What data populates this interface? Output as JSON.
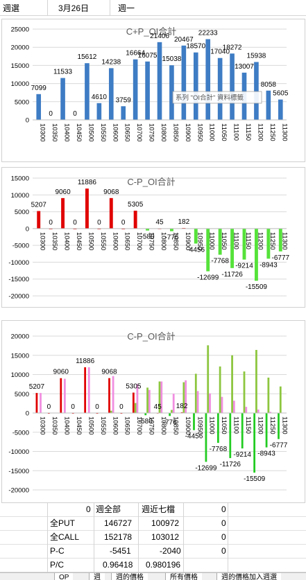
{
  "header": {
    "cells": [
      "週選",
      "3月26日",
      "週一"
    ]
  },
  "chart_data": [
    {
      "type": "bar",
      "title": "C+P_OI合計",
      "categories": [
        "10300",
        "10350",
        "10400",
        "10450",
        "10500",
        "10550",
        "10600",
        "10650",
        "10700",
        "10750",
        "10800",
        "10850",
        "10900",
        "10950",
        "11000",
        "11050",
        "11100",
        "11150",
        "11200",
        "11250",
        "11300"
      ],
      "series": [
        {
          "values": [
            7099,
            0,
            11533,
            0,
            15612,
            4610,
            14238,
            3759,
            16664,
            16075,
            21406,
            15038,
            20467,
            18570,
            22233,
            17040,
            18272,
            13007,
            15938,
            8058,
            5605
          ],
          "color": "#3e7cc4"
        }
      ],
      "ylim": [
        0,
        25000
      ],
      "yticks": [
        0,
        5000,
        10000,
        15000,
        20000,
        25000
      ],
      "tooltip": "系列 \"OI合計\" 資料標籤"
    },
    {
      "type": "bar",
      "title": "C-P_OI合計",
      "categories": [
        "10300",
        "10350",
        "10400",
        "10450",
        "10500",
        "10550",
        "10600",
        "10650",
        "10700",
        "10750",
        "10800",
        "10850",
        "10900",
        "10950",
        "11000",
        "11050",
        "11100",
        "11150",
        "11200",
        "11250",
        "11300"
      ],
      "series": [
        {
          "values": [
            5207,
            0,
            9060,
            0,
            11886,
            0,
            9068,
            0,
            5305,
            -580,
            45,
            -776,
            182,
            -4456,
            -12699,
            -7768,
            -11726,
            -9214,
            -15509,
            -8943,
            -6777
          ]
        }
      ],
      "colors": {
        "positive": "#e00000",
        "negative": "#55e23a"
      },
      "ylim": [
        -20000,
        15000
      ],
      "yticks": [
        -20000,
        -15000,
        -10000,
        -5000,
        0,
        5000,
        10000,
        15000
      ]
    },
    {
      "type": "bar",
      "title": "C-P_OI合計",
      "categories": [
        "10300",
        "10350",
        "10400",
        "10450",
        "10500",
        "10550",
        "10600",
        "10650",
        "10700",
        "10750",
        "10800",
        "10850",
        "10900",
        "10950",
        "11000",
        "11050",
        "11100",
        "11150",
        "11200",
        "11250",
        "11300"
      ],
      "series": [
        {
          "values": [
            5207,
            0,
            9060,
            0,
            11886,
            0,
            9068,
            0,
            5305,
            -580,
            45,
            -776,
            182,
            -4456,
            -12699,
            -7768,
            -11726,
            -9214,
            -15509,
            -8943,
            -6777
          ]
        },
        {
          "values": [
            0,
            0,
            0,
            0,
            0,
            0,
            600,
            0,
            2600,
            6600,
            8200,
            800,
            8000,
            10200,
            17600,
            12100,
            15000,
            10800,
            16400,
            9200,
            6900
          ],
          "color": "#8dc63f"
        },
        {
          "values": [
            5200,
            0,
            8900,
            0,
            11900,
            0,
            9600,
            0,
            7500,
            6000,
            8200,
            5000,
            8500,
            5700,
            5100,
            4200,
            3200,
            1600,
            900,
            300,
            100
          ],
          "color": "#f08ee0"
        }
      ],
      "colors": {
        "positive": "#e00000",
        "negative": "#22cc22"
      },
      "ylim": [
        -20000,
        20000
      ],
      "yticks": [
        -20000,
        -15000,
        -10000,
        -5000,
        0,
        5000,
        10000,
        15000,
        20000
      ]
    }
  ],
  "table": {
    "rows": [
      {
        "a": "",
        "b": "0",
        "c": "週全部",
        "d": "週近七檔",
        "e": "0"
      },
      {
        "a": "全PUT",
        "b": "",
        "c": "146727",
        "d": "100972",
        "e": "0"
      },
      {
        "a": "全CALL",
        "b": "",
        "c": "152178",
        "d": "103012",
        "e": "0"
      },
      {
        "a": "P-C",
        "b": "",
        "c": "-5451",
        "d": "-2040",
        "e": "0"
      },
      {
        "a": "P/C",
        "b": "",
        "c": "0.96418",
        "d": "0.980196",
        "e": ""
      }
    ]
  },
  "tabs": [
    "OP",
    "週",
    "週的價格",
    "所有價格",
    "週的價格加入週選"
  ]
}
